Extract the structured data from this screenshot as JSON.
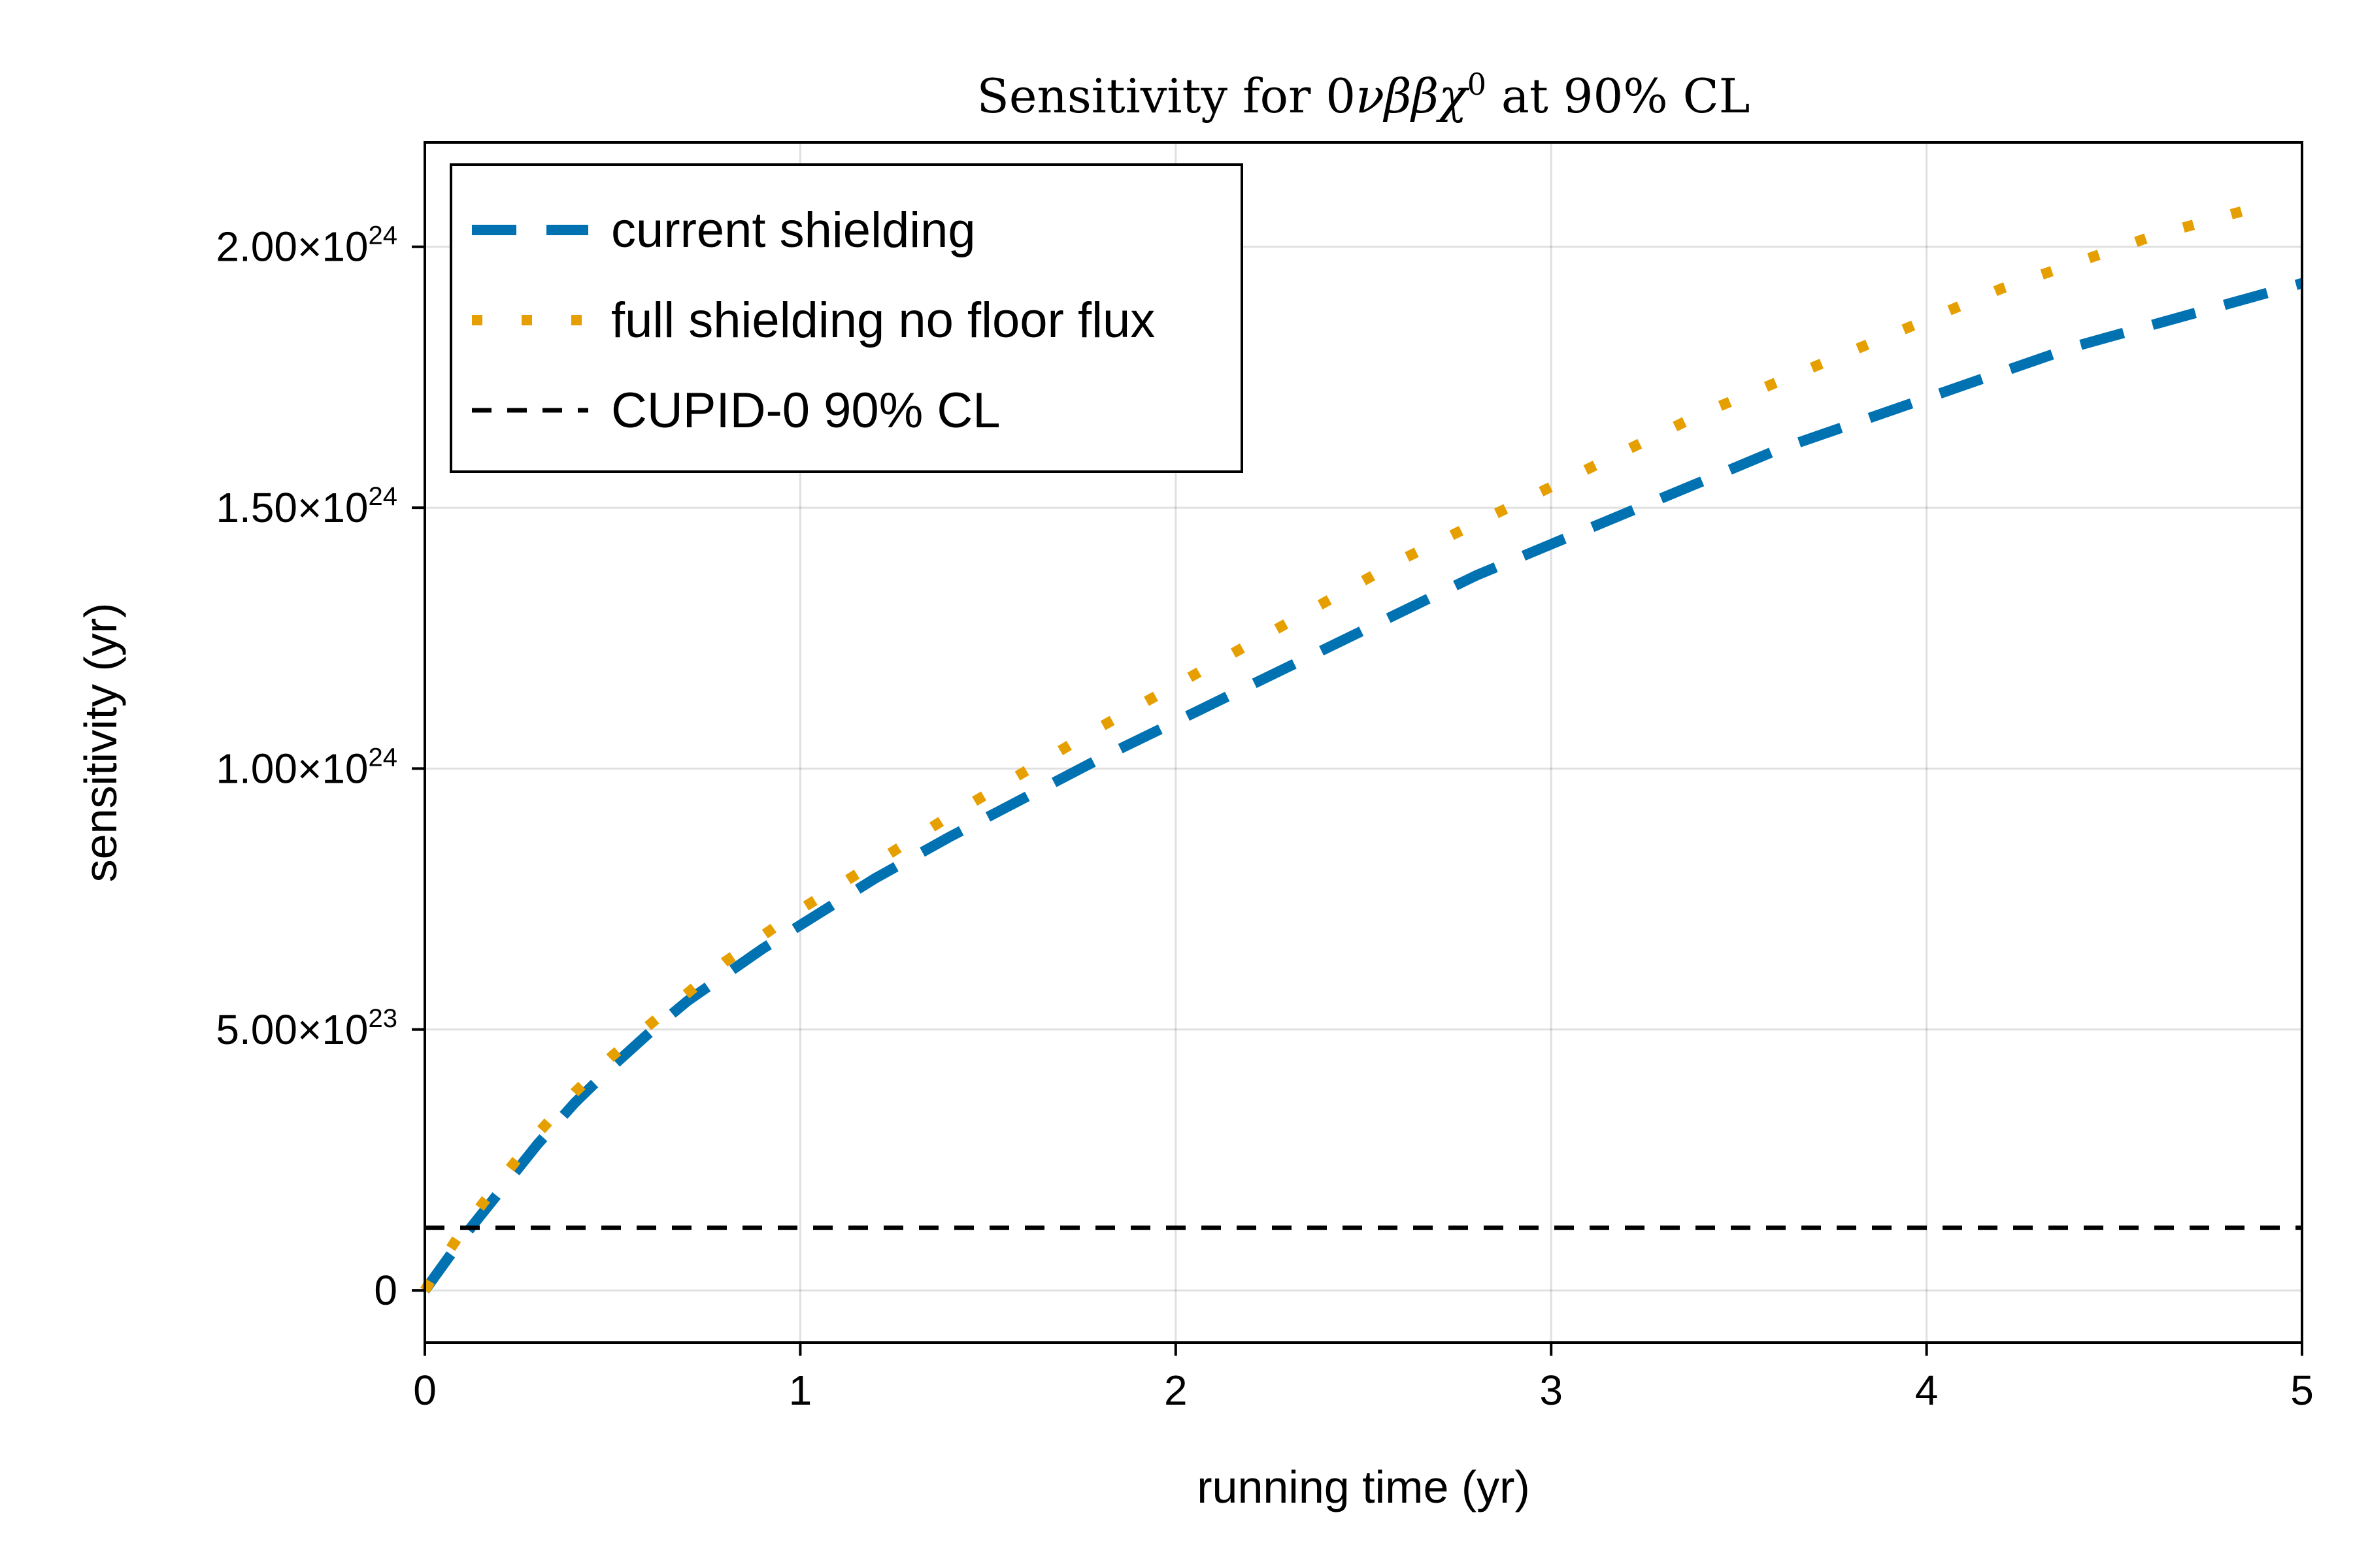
{
  "chart_data": {
    "type": "line",
    "title_prefix": "Sensitivity for 0",
    "title_symbols": "νββχ",
    "title_sup": "0",
    "title_suffix": " at 90% CL",
    "xlabel": "running time (yr)",
    "ylabel": "sensitivity (yr)",
    "xlim": [
      0,
      5
    ],
    "ylim": [
      -1e+23,
      2.2e+24
    ],
    "x_ticks": [
      0,
      1,
      2,
      3,
      4,
      5
    ],
    "x_tick_labels": [
      "0",
      "1",
      "2",
      "3",
      "4",
      "5"
    ],
    "y_ticks": [
      0,
      5e+23,
      1e+24,
      1.5e+24,
      2e+24
    ],
    "y_tick_mantissa": [
      "0",
      "5.00×10",
      "1.00×10",
      "1.50×10",
      "2.00×10"
    ],
    "y_tick_exponent": [
      "",
      "23",
      "24",
      "24",
      "24"
    ],
    "grid": true,
    "legend_position": "top-left",
    "series": [
      {
        "name": "current shielding",
        "color": "#0072B2",
        "style": "dashed",
        "x": [
          0,
          0.05,
          0.1,
          0.2,
          0.3,
          0.4,
          0.5,
          0.6,
          0.7,
          0.8,
          0.9,
          1.0,
          1.2,
          1.4,
          1.6,
          1.8,
          2.0,
          2.2,
          2.4,
          2.6,
          2.8,
          3.0,
          3.2,
          3.4,
          3.6,
          3.8,
          4.0,
          4.2,
          4.4,
          4.6,
          4.8,
          5.0
        ],
        "y": [
          0,
          5e+22,
          1e+23,
          1.9e+23,
          2.8e+23,
          3.6e+23,
          4.3e+23,
          4.95e+23,
          5.55e+23,
          6.05e+23,
          6.55e+23,
          7e+23,
          7.9e+23,
          8.7e+23,
          9.45e+23,
          1.02e+24,
          1.09e+24,
          1.16e+24,
          1.23e+24,
          1.3e+24,
          1.37e+24,
          1.43e+24,
          1.49e+24,
          1.55e+24,
          1.61e+24,
          1.66e+24,
          1.71e+24,
          1.76e+24,
          1.81e+24,
          1.85e+24,
          1.89e+24,
          1.93e+24
        ]
      },
      {
        "name": "full shielding no floor flux",
        "color": "#E69F00",
        "style": "dotted",
        "x": [
          0,
          0.05,
          0.1,
          0.2,
          0.3,
          0.4,
          0.5,
          0.6,
          0.7,
          0.8,
          0.9,
          1.0,
          1.2,
          1.4,
          1.6,
          1.8,
          2.0,
          2.2,
          2.4,
          2.6,
          2.8,
          3.0,
          3.2,
          3.4,
          3.6,
          3.8,
          4.0,
          4.2,
          4.4,
          4.6,
          4.8,
          4.9
        ],
        "y": [
          0,
          6e+22,
          1.15e+23,
          2.1e+23,
          3e+23,
          3.8e+23,
          4.5e+23,
          5.1e+23,
          5.7e+23,
          6.3e+23,
          6.8e+23,
          7.3e+23,
          8.2e+23,
          9.1e+23,
          9.95e+23,
          1.08e+24,
          1.16e+24,
          1.24e+24,
          1.32e+24,
          1.4e+24,
          1.47e+24,
          1.54e+24,
          1.61e+24,
          1.68e+24,
          1.74e+24,
          1.8e+24,
          1.86e+24,
          1.92e+24,
          1.97e+24,
          2.02e+24,
          2.06e+24,
          2.08e+24
        ]
      },
      {
        "name": "CUPID-0 90% CL",
        "color": "#000000",
        "style": "dashed-thin",
        "x": [
          0,
          5
        ],
        "y": [
          1.2e+23,
          1.2e+23
        ]
      }
    ]
  }
}
